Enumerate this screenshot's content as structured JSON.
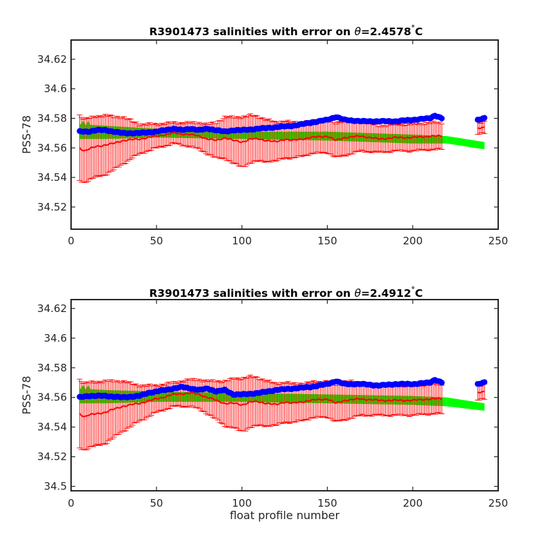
{
  "colors": {
    "float_salinity": "#0000ff",
    "mapped_salinity_error": "#ff0000",
    "reference_salinity": "#00ff00",
    "axes": "#262626"
  },
  "chart_data": [
    {
      "type": "line",
      "title_prefix": "R3901473 salinities with error on ",
      "title_symbol": "θ",
      "title_suffix": "=2.4578",
      "title_degree": "°",
      "title_unit": "C",
      "xlabel": "",
      "ylabel": "PSS-78",
      "xlim": [
        0,
        250
      ],
      "ylim": [
        34.505,
        34.633
      ],
      "x_ticks": [
        "0",
        "50",
        "100",
        "150",
        "200",
        "250"
      ],
      "y_ticks": [
        "34.52",
        "34.54",
        "34.56",
        "34.58",
        "34.6",
        "34.62"
      ],
      "grid": false,
      "legend": "none",
      "profiles": [
        [
          5,
          217
        ],
        [
          238,
          242
        ]
      ],
      "float_salinity_knots": [
        [
          5,
          34.571
        ],
        [
          10,
          34.571
        ],
        [
          15,
          34.572
        ],
        [
          20,
          34.572
        ],
        [
          30,
          34.57
        ],
        [
          40,
          34.57
        ],
        [
          50,
          34.571
        ],
        [
          55,
          34.572
        ],
        [
          60,
          34.573
        ],
        [
          65,
          34.572
        ],
        [
          70,
          34.573
        ],
        [
          75,
          34.572
        ],
        [
          80,
          34.573
        ],
        [
          85,
          34.572
        ],
        [
          90,
          34.571
        ],
        [
          95,
          34.572
        ],
        [
          100,
          34.572
        ],
        [
          110,
          34.573
        ],
        [
          120,
          34.574
        ],
        [
          130,
          34.575
        ],
        [
          140,
          34.577
        ],
        [
          150,
          34.579
        ],
        [
          155,
          34.581
        ],
        [
          160,
          34.579
        ],
        [
          170,
          34.578
        ],
        [
          180,
          34.578
        ],
        [
          190,
          34.578
        ],
        [
          200,
          34.579
        ],
        [
          210,
          34.58
        ],
        [
          213,
          34.582
        ],
        [
          217,
          34.58
        ],
        [
          238,
          34.579
        ],
        [
          242,
          34.58
        ]
      ],
      "mapped_salinity_knots": [
        [
          5,
          34.56
        ],
        [
          8,
          34.558
        ],
        [
          10,
          34.559
        ],
        [
          15,
          34.561
        ],
        [
          20,
          34.562
        ],
        [
          25,
          34.563
        ],
        [
          30,
          34.565
        ],
        [
          40,
          34.566
        ],
        [
          50,
          34.568
        ],
        [
          60,
          34.57
        ],
        [
          70,
          34.569
        ],
        [
          75,
          34.568
        ],
        [
          80,
          34.566
        ],
        [
          85,
          34.565
        ],
        [
          90,
          34.567
        ],
        [
          95,
          34.565
        ],
        [
          100,
          34.564
        ],
        [
          105,
          34.566
        ],
        [
          110,
          34.566
        ],
        [
          115,
          34.565
        ],
        [
          120,
          34.564
        ],
        [
          125,
          34.566
        ],
        [
          130,
          34.565
        ],
        [
          140,
          34.567
        ],
        [
          150,
          34.568
        ],
        [
          155,
          34.565
        ],
        [
          160,
          34.567
        ],
        [
          170,
          34.568
        ],
        [
          180,
          34.566
        ],
        [
          190,
          34.567
        ],
        [
          200,
          34.567
        ],
        [
          210,
          34.568
        ],
        [
          217,
          34.568
        ],
        [
          238,
          34.573
        ],
        [
          242,
          34.574
        ]
      ],
      "error_halfwidth_knots": [
        [
          5,
          0.022
        ],
        [
          10,
          0.021
        ],
        [
          20,
          0.02
        ],
        [
          30,
          0.016
        ],
        [
          40,
          0.01
        ],
        [
          50,
          0.008
        ],
        [
          60,
          0.007
        ],
        [
          70,
          0.008
        ],
        [
          80,
          0.01
        ],
        [
          90,
          0.014
        ],
        [
          100,
          0.017
        ],
        [
          110,
          0.015
        ],
        [
          120,
          0.013
        ],
        [
          130,
          0.012
        ],
        [
          140,
          0.011
        ],
        [
          150,
          0.011
        ],
        [
          160,
          0.012
        ],
        [
          170,
          0.01
        ],
        [
          180,
          0.009
        ],
        [
          190,
          0.009
        ],
        [
          200,
          0.009
        ],
        [
          210,
          0.009
        ],
        [
          217,
          0.009
        ],
        [
          238,
          0.004
        ],
        [
          242,
          0.004
        ]
      ],
      "reference_band_knots": [
        [
          5,
          34.576,
          34.566
        ],
        [
          20,
          34.575,
          34.566
        ],
        [
          50,
          34.573,
          34.567
        ],
        [
          100,
          34.571,
          34.566
        ],
        [
          150,
          34.571,
          34.565
        ],
        [
          200,
          34.569,
          34.563
        ],
        [
          220,
          34.568,
          34.563
        ],
        [
          242,
          34.564,
          34.559
        ]
      ]
    },
    {
      "type": "line",
      "title_prefix": "R3901473 salinities with error on ",
      "title_symbol": "θ",
      "title_suffix": "=2.4912",
      "title_degree": "°",
      "title_unit": "C",
      "xlabel": "float profile number",
      "ylabel": "PSS-78",
      "xlim": [
        0,
        250
      ],
      "ylim": [
        34.497,
        34.626
      ],
      "x_ticks": [
        "0",
        "50",
        "100",
        "150",
        "200",
        "250"
      ],
      "y_ticks": [
        "34.5",
        "34.52",
        "34.54",
        "34.56",
        "34.58",
        "34.6",
        "34.62"
      ],
      "grid": false,
      "legend": "none",
      "profiles": [
        [
          5,
          217
        ],
        [
          238,
          242
        ]
      ],
      "float_salinity_knots": [
        [
          5,
          34.56
        ],
        [
          10,
          34.561
        ],
        [
          15,
          34.561
        ],
        [
          20,
          34.561
        ],
        [
          30,
          34.56
        ],
        [
          40,
          34.561
        ],
        [
          45,
          34.563
        ],
        [
          50,
          34.564
        ],
        [
          55,
          34.565
        ],
        [
          60,
          34.566
        ],
        [
          65,
          34.567
        ],
        [
          70,
          34.566
        ],
        [
          75,
          34.565
        ],
        [
          80,
          34.566
        ],
        [
          85,
          34.564
        ],
        [
          90,
          34.565
        ],
        [
          95,
          34.562
        ],
        [
          100,
          34.562
        ],
        [
          110,
          34.563
        ],
        [
          120,
          34.565
        ],
        [
          130,
          34.566
        ],
        [
          140,
          34.567
        ],
        [
          150,
          34.569
        ],
        [
          155,
          34.571
        ],
        [
          160,
          34.569
        ],
        [
          170,
          34.569
        ],
        [
          180,
          34.568
        ],
        [
          190,
          34.569
        ],
        [
          200,
          34.569
        ],
        [
          210,
          34.57
        ],
        [
          213,
          34.572
        ],
        [
          217,
          34.57
        ],
        [
          238,
          34.569
        ],
        [
          242,
          34.57
        ]
      ],
      "mapped_salinity_knots": [
        [
          5,
          34.549
        ],
        [
          8,
          34.547
        ],
        [
          10,
          34.548
        ],
        [
          15,
          34.549
        ],
        [
          20,
          34.55
        ],
        [
          25,
          34.552
        ],
        [
          30,
          34.554
        ],
        [
          40,
          34.556
        ],
        [
          50,
          34.559
        ],
        [
          60,
          34.562
        ],
        [
          70,
          34.563
        ],
        [
          75,
          34.562
        ],
        [
          80,
          34.56
        ],
        [
          85,
          34.558
        ],
        [
          90,
          34.556
        ],
        [
          95,
          34.556
        ],
        [
          100,
          34.555
        ],
        [
          105,
          34.557
        ],
        [
          110,
          34.557
        ],
        [
          115,
          34.556
        ],
        [
          120,
          34.555
        ],
        [
          125,
          34.557
        ],
        [
          130,
          34.556
        ],
        [
          140,
          34.558
        ],
        [
          150,
          34.559
        ],
        [
          155,
          34.556
        ],
        [
          160,
          34.558
        ],
        [
          170,
          34.559
        ],
        [
          180,
          34.558
        ],
        [
          190,
          34.558
        ],
        [
          200,
          34.558
        ],
        [
          210,
          34.559
        ],
        [
          217,
          34.559
        ],
        [
          238,
          34.563
        ],
        [
          242,
          34.564
        ]
      ],
      "error_halfwidth_knots": [
        [
          5,
          0.023
        ],
        [
          10,
          0.022
        ],
        [
          20,
          0.021
        ],
        [
          30,
          0.017
        ],
        [
          40,
          0.012
        ],
        [
          50,
          0.009
        ],
        [
          60,
          0.008
        ],
        [
          70,
          0.009
        ],
        [
          80,
          0.011
        ],
        [
          90,
          0.015
        ],
        [
          100,
          0.018
        ],
        [
          110,
          0.016
        ],
        [
          120,
          0.014
        ],
        [
          130,
          0.013
        ],
        [
          140,
          0.012
        ],
        [
          150,
          0.012
        ],
        [
          160,
          0.013
        ],
        [
          170,
          0.011
        ],
        [
          180,
          0.01
        ],
        [
          190,
          0.01
        ],
        [
          200,
          0.01
        ],
        [
          210,
          0.01
        ],
        [
          217,
          0.01
        ],
        [
          238,
          0.005
        ],
        [
          242,
          0.005
        ]
      ],
      "reference_band_knots": [
        [
          5,
          34.566,
          34.556
        ],
        [
          20,
          34.565,
          34.556
        ],
        [
          50,
          34.564,
          34.557
        ],
        [
          100,
          34.563,
          34.557
        ],
        [
          150,
          34.562,
          34.556
        ],
        [
          200,
          34.561,
          34.555
        ],
        [
          220,
          34.56,
          34.554
        ],
        [
          242,
          34.556,
          34.551
        ]
      ]
    }
  ]
}
